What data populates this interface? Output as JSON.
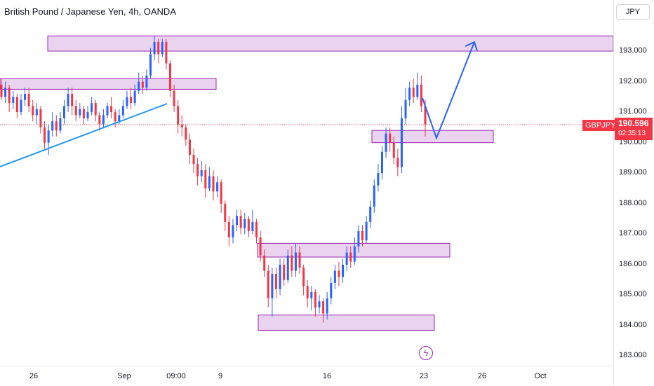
{
  "header": {
    "symbol_title": "British Pound / Japanese Yen, 4h, OANDA"
  },
  "price_axis": {
    "currency": "JPY",
    "labels": [
      "193.000",
      "192.000",
      "191.000",
      "190.000",
      "189.000",
      "188.000",
      "187.000",
      "186.000",
      "185.000",
      "184.000",
      "183.000"
    ]
  },
  "time_axis": {
    "labels": [
      "26",
      "Sep",
      "09:00",
      "9",
      "16",
      "23",
      "26",
      "Oct"
    ]
  },
  "last_price": {
    "ticker": "GBPJPY",
    "price": "190.596",
    "countdown": "02:35:13"
  },
  "event_icon": {
    "icon": "lightning-icon",
    "glyph": "ϟ"
  },
  "colors": {
    "up": "#2962ff",
    "down": "#f23645",
    "zone_fill": "#e9d3ef",
    "zone_stroke": "#9c27b0",
    "trendline": "#2196f3",
    "projection": "#2962ff",
    "price_line": "#f23645"
  },
  "chart_data": {
    "type": "candlestick",
    "symbol": "GBPJPY",
    "timeframe": "4h",
    "y_range": [
      182.8,
      193.9
    ],
    "zones": [
      {
        "low": 193.0,
        "high": 193.5
      },
      {
        "low": 191.75,
        "high": 192.1
      },
      {
        "low": 190.0,
        "high": 190.4
      },
      {
        "low": 186.25,
        "high": 186.7
      },
      {
        "low": 183.85,
        "high": 184.35
      }
    ],
    "candles": [
      [
        191.9,
        191.5,
        192.1,
        191.4
      ],
      [
        191.5,
        191.8,
        192.0,
        191.3
      ],
      [
        191.8,
        191.3,
        191.9,
        191.0
      ],
      [
        191.3,
        191.5,
        191.7,
        191.1
      ],
      [
        191.5,
        191.0,
        191.6,
        190.8
      ],
      [
        191.0,
        191.4,
        191.6,
        190.9
      ],
      [
        191.4,
        191.6,
        191.8,
        191.2
      ],
      [
        191.6,
        191.2,
        191.8,
        191.0
      ],
      [
        191.2,
        190.9,
        191.4,
        190.7
      ],
      [
        190.9,
        191.1,
        191.3,
        190.6
      ],
      [
        191.1,
        190.5,
        191.2,
        190.3
      ],
      [
        190.5,
        190.0,
        190.7,
        189.8
      ],
      [
        190.0,
        190.4,
        190.6,
        189.6
      ],
      [
        190.4,
        190.7,
        191.0,
        190.2
      ],
      [
        190.7,
        190.4,
        190.9,
        190.2
      ],
      [
        190.4,
        190.8,
        191.0,
        190.3
      ],
      [
        190.8,
        191.2,
        191.4,
        190.6
      ],
      [
        191.2,
        191.6,
        191.8,
        191.0
      ],
      [
        191.6,
        191.2,
        191.8,
        190.9
      ],
      [
        191.2,
        190.9,
        191.4,
        190.7
      ],
      [
        190.9,
        191.1,
        191.3,
        190.8
      ],
      [
        191.1,
        190.8,
        191.2,
        190.6
      ],
      [
        190.8,
        191.0,
        191.2,
        190.7
      ],
      [
        191.0,
        191.3,
        191.5,
        190.9
      ],
      [
        191.3,
        190.9,
        191.4,
        190.7
      ],
      [
        190.9,
        190.6,
        191.0,
        190.4
      ],
      [
        190.6,
        190.9,
        191.1,
        190.5
      ],
      [
        190.9,
        191.2,
        191.3,
        190.8
      ],
      [
        191.2,
        191.0,
        191.5,
        190.8
      ],
      [
        191.0,
        190.7,
        191.1,
        190.5
      ],
      [
        190.7,
        190.9,
        191.1,
        190.6
      ],
      [
        190.9,
        191.2,
        191.4,
        190.8
      ],
      [
        191.2,
        191.5,
        191.7,
        191.1
      ],
      [
        191.5,
        191.3,
        191.8,
        191.1
      ],
      [
        191.3,
        191.7,
        191.9,
        191.2
      ],
      [
        191.7,
        192.0,
        192.3,
        191.6
      ],
      [
        192.0,
        191.8,
        192.2,
        191.6
      ],
      [
        191.8,
        192.2,
        192.4,
        191.7
      ],
      [
        192.2,
        192.9,
        193.1,
        192.1
      ],
      [
        192.9,
        193.3,
        193.5,
        192.7
      ],
      [
        193.3,
        192.9,
        193.4,
        192.6
      ],
      [
        192.9,
        193.3,
        193.4,
        192.8
      ],
      [
        193.3,
        192.6,
        193.4,
        192.4
      ],
      [
        192.6,
        191.7,
        192.7,
        191.5
      ],
      [
        191.7,
        191.2,
        191.9,
        191.0
      ],
      [
        191.2,
        190.6,
        191.4,
        190.3
      ],
      [
        190.6,
        190.5,
        190.9,
        190.2
      ],
      [
        190.5,
        190.1,
        190.6,
        189.9
      ],
      [
        190.1,
        189.6,
        190.3,
        189.3
      ],
      [
        189.6,
        189.3,
        189.8,
        189.0
      ],
      [
        189.3,
        188.9,
        189.5,
        188.6
      ],
      [
        188.9,
        189.1,
        189.4,
        188.7
      ],
      [
        189.1,
        188.5,
        189.3,
        188.2
      ],
      [
        188.5,
        188.9,
        189.2,
        188.4
      ],
      [
        188.9,
        188.4,
        189.1,
        188.1
      ],
      [
        188.4,
        188.7,
        188.9,
        188.2
      ],
      [
        188.7,
        188.0,
        188.8,
        187.7
      ],
      [
        188.0,
        187.4,
        188.1,
        187.1
      ],
      [
        187.4,
        186.9,
        187.6,
        186.6
      ],
      [
        186.9,
        187.3,
        187.5,
        186.7
      ],
      [
        187.3,
        187.6,
        187.8,
        187.1
      ],
      [
        187.6,
        187.2,
        187.8,
        187.0
      ],
      [
        187.2,
        187.5,
        187.7,
        187.0
      ],
      [
        187.5,
        187.1,
        187.6,
        186.9
      ],
      [
        187.1,
        187.4,
        187.8,
        187.0
      ],
      [
        187.4,
        186.9,
        187.5,
        186.7
      ],
      [
        186.9,
        186.3,
        187.1,
        186.1
      ],
      [
        186.3,
        185.8,
        186.5,
        185.6
      ],
      [
        185.8,
        184.9,
        186.0,
        184.6
      ],
      [
        184.9,
        185.7,
        185.9,
        184.3
      ],
      [
        185.7,
        185.2,
        185.9,
        184.9
      ],
      [
        185.2,
        186.0,
        186.2,
        185.0
      ],
      [
        186.0,
        185.5,
        186.2,
        185.3
      ],
      [
        185.5,
        186.3,
        186.5,
        185.4
      ],
      [
        186.3,
        185.8,
        186.6,
        185.6
      ],
      [
        185.8,
        186.4,
        186.7,
        185.6
      ],
      [
        186.4,
        185.9,
        186.6,
        185.7
      ],
      [
        185.9,
        185.3,
        186.0,
        185.0
      ],
      [
        185.3,
        184.9,
        185.5,
        184.6
      ],
      [
        184.9,
        185.1,
        185.3,
        184.5
      ],
      [
        185.1,
        184.6,
        185.2,
        184.3
      ],
      [
        184.6,
        184.8,
        185.0,
        184.4
      ],
      [
        184.8,
        184.4,
        184.9,
        184.1
      ],
      [
        184.4,
        184.9,
        185.1,
        184.2
      ],
      [
        184.9,
        185.4,
        185.6,
        184.7
      ],
      [
        185.4,
        185.8,
        186.0,
        185.2
      ],
      [
        185.8,
        185.6,
        186.1,
        185.3
      ],
      [
        185.6,
        186.0,
        186.2,
        185.4
      ],
      [
        186.0,
        186.4,
        186.6,
        185.8
      ],
      [
        186.4,
        186.1,
        186.6,
        185.9
      ],
      [
        186.1,
        186.6,
        186.9,
        186.0
      ],
      [
        186.6,
        187.1,
        187.3,
        186.4
      ],
      [
        187.1,
        186.8,
        187.3,
        186.6
      ],
      [
        186.8,
        187.4,
        187.6,
        186.7
      ],
      [
        187.4,
        187.9,
        188.1,
        187.2
      ],
      [
        187.9,
        188.6,
        188.8,
        187.7
      ],
      [
        188.6,
        189.0,
        189.3,
        188.4
      ],
      [
        189.0,
        189.7,
        189.9,
        188.8
      ],
      [
        189.7,
        190.3,
        190.5,
        189.5
      ],
      [
        190.3,
        190.0,
        190.5,
        189.7
      ],
      [
        190.0,
        189.5,
        190.2,
        189.3
      ],
      [
        189.5,
        189.2,
        189.8,
        188.9
      ],
      [
        189.2,
        190.8,
        191.2,
        189.0
      ],
      [
        190.8,
        191.4,
        191.8,
        190.6
      ],
      [
        191.4,
        191.8,
        192.0,
        191.2
      ],
      [
        191.8,
        191.5,
        192.1,
        191.3
      ],
      [
        191.5,
        191.9,
        192.3,
        191.4
      ],
      [
        191.9,
        191.2,
        192.2,
        191.0
      ],
      [
        191.2,
        190.6,
        191.4,
        190.2
      ]
    ]
  }
}
